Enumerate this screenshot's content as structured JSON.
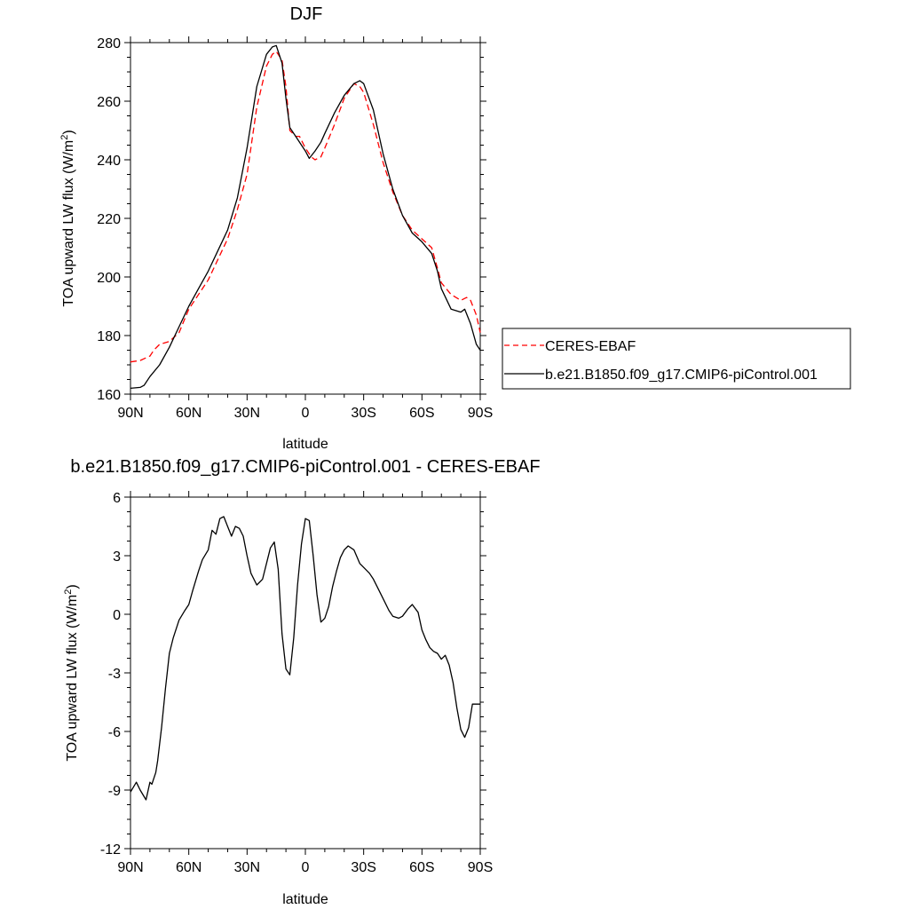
{
  "chart_data": [
    {
      "type": "line",
      "title": "DJF",
      "xlabel": "latitude",
      "ylabel": "TOA upward LW flux (W/m",
      "ylabel_sup": "2",
      "ylabel_close": ")",
      "xlim": [
        90,
        -90
      ],
      "ylim": [
        160,
        280
      ],
      "x_ticks": [
        90,
        60,
        30,
        0,
        -30,
        -60,
        -90
      ],
      "x_tick_labels": [
        "90N",
        "60N",
        "30N",
        "0",
        "30S",
        "60S",
        "90S"
      ],
      "y_ticks": [
        160,
        180,
        200,
        220,
        240,
        260,
        280
      ],
      "y_tick_labels": [
        "160",
        "180",
        "200",
        "220",
        "240",
        "260",
        "280"
      ],
      "legend_position": "right",
      "series": [
        {
          "name": "CERES-EBAF",
          "color": "#ff0000",
          "dash": true,
          "x": [
            90,
            85,
            80,
            78,
            75,
            70,
            65,
            60,
            55,
            50,
            45,
            40,
            35,
            30,
            25,
            20,
            17,
            15,
            12,
            10,
            8,
            5,
            3,
            0,
            -3,
            -5,
            -8,
            -10,
            -15,
            -20,
            -25,
            -28,
            -30,
            -35,
            -40,
            -45,
            -50,
            -55,
            -60,
            -65,
            -68,
            -70,
            -75,
            -80,
            -83,
            -85,
            -88,
            -90
          ],
          "y": [
            171,
            171.5,
            173,
            175,
            177,
            178,
            181,
            189,
            194,
            199,
            206,
            213,
            223,
            235,
            258,
            272,
            276,
            277,
            274,
            265,
            250,
            248,
            248,
            244,
            241,
            240,
            241,
            244,
            252,
            261,
            266,
            265,
            263,
            252,
            239,
            229,
            221,
            216,
            213,
            210,
            203,
            198,
            194,
            192,
            193,
            192,
            187,
            181
          ]
        },
        {
          "name": "b.e21.B1850.f09_g17.CMIP6-piControl.001",
          "color": "#000000",
          "dash": false,
          "x": [
            90,
            85,
            83,
            80,
            75,
            70,
            65,
            60,
            55,
            50,
            45,
            40,
            35,
            30,
            25,
            20,
            17,
            15,
            12,
            10,
            8,
            5,
            2,
            0,
            -2,
            -5,
            -8,
            -10,
            -15,
            -20,
            -25,
            -28,
            -30,
            -35,
            -40,
            -45,
            -50,
            -55,
            -60,
            -65,
            -68,
            -70,
            -75,
            -80,
            -82,
            -85,
            -88,
            -90
          ],
          "y": [
            162,
            162.3,
            163,
            166,
            170,
            176,
            183,
            190,
            196,
            202,
            209,
            216,
            227,
            244,
            265,
            276,
            278.5,
            279,
            273,
            261,
            251,
            248,
            245,
            243,
            240.5,
            243,
            246,
            249,
            256,
            262,
            266,
            267,
            266,
            257,
            242,
            230,
            221,
            215,
            212,
            208,
            202,
            196,
            189,
            188,
            189,
            184,
            177,
            175
          ]
        }
      ]
    },
    {
      "type": "line",
      "title": "b.e21.B1850.f09_g17.CMIP6-piControl.001 - CERES-EBAF",
      "xlabel": "latitude",
      "ylabel": "TOA upward LW flux (W/m",
      "ylabel_sup": "2",
      "ylabel_close": ")",
      "xlim": [
        90,
        -90
      ],
      "ylim": [
        -12,
        6
      ],
      "x_ticks": [
        90,
        60,
        30,
        0,
        -30,
        -60,
        -90
      ],
      "x_tick_labels": [
        "90N",
        "60N",
        "30N",
        "0",
        "30S",
        "60S",
        "90S"
      ],
      "y_ticks": [
        -12,
        -9,
        -6,
        -3,
        0,
        3,
        6
      ],
      "y_tick_labels": [
        "-12",
        "-9",
        "-6",
        "-3",
        "0",
        "3",
        "6"
      ],
      "series": [
        {
          "color": "#000000",
          "dash": false,
          "x": [
            90,
            87,
            85,
            82,
            80,
            79,
            77,
            76,
            74,
            72,
            70,
            68,
            65,
            62,
            60,
            58,
            55,
            53,
            50,
            48,
            46,
            44,
            42,
            40,
            38,
            36,
            34,
            32,
            30,
            28,
            25,
            22,
            20,
            18,
            16,
            14,
            12,
            10,
            8,
            6,
            4,
            2,
            0,
            -2,
            -4,
            -6,
            -8,
            -10,
            -12,
            -14,
            -16,
            -18,
            -20,
            -22,
            -25,
            -28,
            -30,
            -33,
            -35,
            -37,
            -40,
            -43,
            -45,
            -48,
            -50,
            -53,
            -55,
            -58,
            -60,
            -62,
            -64,
            -66,
            -68,
            -70,
            -72,
            -74,
            -76,
            -78,
            -80,
            -82,
            -84,
            -86,
            -88,
            -90
          ],
          "y": [
            -9.1,
            -8.6,
            -9,
            -9.5,
            -8.6,
            -8.7,
            -8.1,
            -7.5,
            -5.8,
            -3.8,
            -2,
            -1.2,
            -0.3,
            0.2,
            0.5,
            1.2,
            2.2,
            2.8,
            3.3,
            4.3,
            4.1,
            4.9,
            5.0,
            4.5,
            4.0,
            4.5,
            4.4,
            4.0,
            3.0,
            2.1,
            1.5,
            1.8,
            2.6,
            3.4,
            3.7,
            2.3,
            -1.0,
            -2.8,
            -3.1,
            -1.2,
            1.5,
            3.6,
            4.9,
            4.8,
            3.0,
            1.0,
            -0.4,
            -0.2,
            0.4,
            1.4,
            2.2,
            2.9,
            3.3,
            3.5,
            3.3,
            2.6,
            2.4,
            2.1,
            1.8,
            1.4,
            0.8,
            0.2,
            -0.1,
            -0.2,
            -0.1,
            0.3,
            0.5,
            0.1,
            -0.8,
            -1.3,
            -1.7,
            -1.9,
            -2.0,
            -2.3,
            -2.1,
            -2.6,
            -3.5,
            -4.8,
            -5.9,
            -6.3,
            -5.8,
            -4.6,
            -4.6,
            -4.6
          ]
        }
      ]
    }
  ]
}
